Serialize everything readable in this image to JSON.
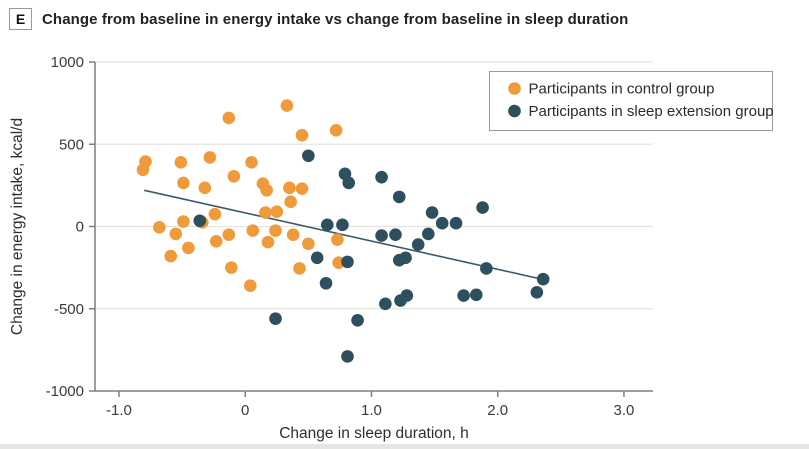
{
  "panel": {
    "label": "E"
  },
  "title": "Change from baseline in energy intake vs change from baseline in sleep duration",
  "colors": {
    "control": "#EF9B3B",
    "sleep_extension": "#2E4F5E",
    "trend_line": "#3A5A68",
    "gridline": "#E4E4E0",
    "axis": "#7F7F7F",
    "tick_text": "#3A3A3A",
    "legend_border": "#9B9B9B",
    "legend_text": "#2B2B2B"
  },
  "chart_data": {
    "type": "scatter",
    "title": "Change from baseline in energy intake vs change from baseline in sleep duration",
    "xlabel": "Change in sleep duration, h",
    "ylabel": "Change in energy intake, kcal/d",
    "xlim": [
      -1.19,
      3.23
    ],
    "ylim": [
      -1000,
      1000
    ],
    "grid": "horizontal",
    "legend_position": "top-right",
    "x_ticks": [
      {
        "v": -1.0,
        "label": "-1.0"
      },
      {
        "v": 0,
        "label": "0"
      },
      {
        "v": 1.0,
        "label": "1.0"
      },
      {
        "v": 2.0,
        "label": "2.0"
      },
      {
        "v": 3.0,
        "label": "3.0"
      }
    ],
    "y_ticks": [
      {
        "v": 1000,
        "label": "1000"
      },
      {
        "v": 500,
        "label": "500"
      },
      {
        "v": 0,
        "label": "0"
      },
      {
        "v": -500,
        "label": "-500"
      },
      {
        "v": -1000,
        "label": "-1000"
      }
    ],
    "series": [
      {
        "name": "Participants in control group",
        "color": "#EF9B3B",
        "points": [
          [
            -0.13,
            660
          ],
          [
            0.33,
            735
          ],
          [
            0.45,
            555
          ],
          [
            0.72,
            585
          ],
          [
            -0.79,
            395
          ],
          [
            -0.81,
            345
          ],
          [
            -0.51,
            390
          ],
          [
            -0.28,
            420
          ],
          [
            0.05,
            390
          ],
          [
            -0.49,
            265
          ],
          [
            -0.32,
            235
          ],
          [
            -0.09,
            305
          ],
          [
            0.14,
            260
          ],
          [
            0.17,
            220
          ],
          [
            0.35,
            235
          ],
          [
            0.45,
            230
          ],
          [
            0.36,
            150
          ],
          [
            0.16,
            85
          ],
          [
            0.25,
            90
          ],
          [
            -0.24,
            75
          ],
          [
            -0.49,
            30
          ],
          [
            -0.34,
            25
          ],
          [
            -0.68,
            -5
          ],
          [
            -0.55,
            -45
          ],
          [
            -0.59,
            -180
          ],
          [
            -0.45,
            -130
          ],
          [
            -0.23,
            -90
          ],
          [
            -0.13,
            -50
          ],
          [
            0.06,
            -25
          ],
          [
            0.18,
            -95
          ],
          [
            0.24,
            -25
          ],
          [
            0.38,
            -50
          ],
          [
            0.5,
            -105
          ],
          [
            0.43,
            -255
          ],
          [
            0.73,
            -80
          ],
          [
            0.74,
            -220
          ],
          [
            -0.11,
            -250
          ],
          [
            0.04,
            -360
          ]
        ]
      },
      {
        "name": "Participants in sleep extension group",
        "color": "#2E4F5E",
        "points": [
          [
            0.5,
            430
          ],
          [
            -0.36,
            35
          ],
          [
            0.79,
            320
          ],
          [
            0.82,
            265
          ],
          [
            1.08,
            300
          ],
          [
            1.22,
            180
          ],
          [
            0.65,
            10
          ],
          [
            0.77,
            10
          ],
          [
            1.48,
            85
          ],
          [
            1.56,
            20
          ],
          [
            1.67,
            20
          ],
          [
            1.88,
            115
          ],
          [
            1.45,
            -45
          ],
          [
            1.37,
            -110
          ],
          [
            1.08,
            -55
          ],
          [
            1.19,
            -50
          ],
          [
            0.57,
            -190
          ],
          [
            0.81,
            -215
          ],
          [
            0.64,
            -345
          ],
          [
            0.24,
            -560
          ],
          [
            1.22,
            -205
          ],
          [
            1.27,
            -190
          ],
          [
            1.11,
            -470
          ],
          [
            1.23,
            -450
          ],
          [
            1.28,
            -420
          ],
          [
            0.89,
            -570
          ],
          [
            0.81,
            -790
          ],
          [
            1.73,
            -420
          ],
          [
            1.83,
            -415
          ],
          [
            1.91,
            -255
          ],
          [
            2.31,
            -400
          ],
          [
            2.36,
            -320
          ]
        ]
      }
    ],
    "trend_line": {
      "x": [
        -0.8,
        2.36
      ],
      "y": [
        220,
        -322
      ]
    }
  }
}
